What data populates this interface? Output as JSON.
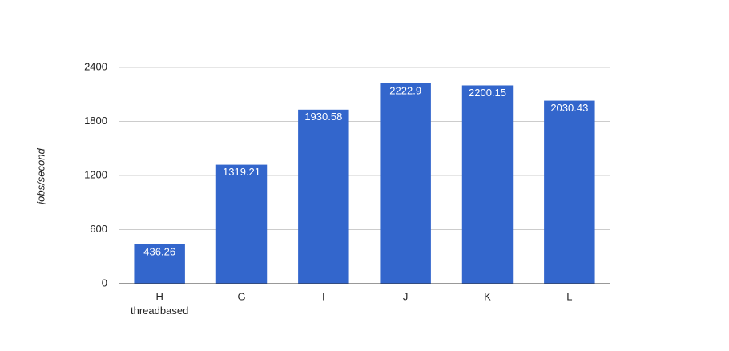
{
  "chart_data": {
    "type": "bar",
    "y_label": "jobs/second",
    "categories": [
      "H\nthreadbased",
      "G",
      "I",
      "J",
      "K",
      "L"
    ],
    "values": [
      436.26,
      1319.21,
      1930.58,
      2222.9,
      2200.15,
      2030.43
    ],
    "color": "#3366cc",
    "ylim": [
      0,
      2400
    ],
    "yticks": [
      0,
      600,
      1200,
      1800,
      2400
    ],
    "grid": true
  }
}
